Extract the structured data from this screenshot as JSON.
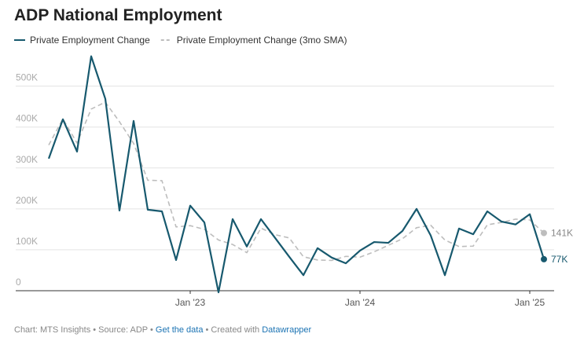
{
  "chart_data": {
    "type": "line",
    "title": "ADP National Employment",
    "categories": [
      null,
      null,
      null,
      null,
      null,
      null,
      null,
      null,
      null,
      null,
      "Jan '23",
      null,
      null,
      null,
      null,
      null,
      null,
      null,
      null,
      null,
      null,
      null,
      "Jan '24",
      null,
      null,
      null,
      null,
      null,
      null,
      null,
      null,
      null,
      null,
      null,
      "Jan '25",
      null
    ],
    "series": [
      {
        "name": "Private Employment Change",
        "color": "#17596e",
        "dashed": false,
        "values": [
          323000,
          419000,
          340000,
          573000,
          469000,
          196000,
          415000,
          198000,
          194000,
          75000,
          208000,
          167000,
          -4000,
          175000,
          108000,
          175000,
          129000,
          83000,
          38000,
          104000,
          81000,
          67000,
          98000,
          119000,
          117000,
          146000,
          200000,
          135000,
          38000,
          152000,
          138000,
          194000,
          169000,
          162000,
          187000,
          77000
        ],
        "value_labels": [
          null,
          null,
          null,
          null,
          null,
          null,
          null,
          null,
          null,
          null,
          null,
          null,
          null,
          null,
          null,
          null,
          null,
          null,
          null,
          null,
          null,
          null,
          null,
          null,
          null,
          null,
          null,
          null,
          null,
          null,
          null,
          null,
          null,
          null,
          null,
          "77K"
        ]
      },
      {
        "name": "Private Employment Change (3mo SMA)",
        "color": "#bdbdbd",
        "dashed": true,
        "values": [
          356000,
          420000,
          361000,
          444000,
          461000,
          413000,
          360000,
          270000,
          269000,
          156000,
          159000,
          150000,
          124000,
          113000,
          93000,
          153000,
          137000,
          129000,
          83000,
          75000,
          74000,
          84000,
          82000,
          95000,
          111000,
          127000,
          154000,
          160000,
          124000,
          108000,
          109000,
          161000,
          167000,
          175000,
          173000,
          141000
        ],
        "value_labels": [
          null,
          null,
          null,
          null,
          null,
          null,
          null,
          null,
          null,
          null,
          null,
          null,
          null,
          null,
          null,
          null,
          null,
          null,
          null,
          null,
          null,
          null,
          null,
          null,
          null,
          null,
          null,
          null,
          null,
          null,
          null,
          null,
          null,
          null,
          null,
          "141K"
        ]
      }
    ],
    "ylim": [
      0,
      580000
    ],
    "yticks": [
      0,
      {
        "value": 100000,
        "label": "100K"
      },
      {
        "value": 200000,
        "label": "200K"
      },
      {
        "value": 300000,
        "label": "300K"
      },
      {
        "value": 400000,
        "label": "400K"
      },
      {
        "value": 500000,
        "label": "500K"
      }
    ],
    "grid": true,
    "footer": [
      "Chart: MTS Insights • Source: ADP • ",
      "Get the data",
      " • Created with ",
      "Datawrapper"
    ]
  }
}
